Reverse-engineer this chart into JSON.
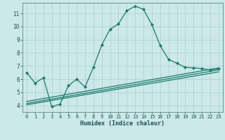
{
  "xlabel": "Humidex (Indice chaleur)",
  "bg_color": "#cce8e8",
  "grid_color": "#b0d4d4",
  "line_color": "#1a7a6a",
  "xlim": [
    -0.5,
    23.5
  ],
  "ylim": [
    3.5,
    11.8
  ],
  "xticks": [
    0,
    1,
    2,
    3,
    4,
    5,
    6,
    7,
    8,
    9,
    10,
    11,
    12,
    13,
    14,
    15,
    16,
    17,
    18,
    19,
    20,
    21,
    22,
    23
  ],
  "yticks": [
    4,
    5,
    6,
    7,
    8,
    9,
    10,
    11
  ],
  "main_x": [
    0,
    1,
    2,
    3,
    4,
    5,
    6,
    7,
    8,
    9,
    10,
    11,
    12,
    13,
    14,
    15,
    16,
    17,
    18,
    19,
    20,
    21,
    22,
    23
  ],
  "main_y": [
    6.5,
    5.7,
    6.1,
    3.9,
    4.1,
    5.5,
    6.0,
    5.4,
    6.9,
    8.6,
    9.8,
    10.2,
    11.2,
    11.55,
    11.3,
    10.15,
    8.55,
    7.5,
    7.2,
    6.9,
    6.85,
    6.8,
    6.7,
    6.8
  ],
  "line1_x": [
    0,
    23
  ],
  "line1_y": [
    4.05,
    6.55
  ],
  "line2_x": [
    0,
    23
  ],
  "line2_y": [
    4.15,
    6.7
  ],
  "line3_x": [
    0,
    23
  ],
  "line3_y": [
    4.3,
    6.85
  ]
}
